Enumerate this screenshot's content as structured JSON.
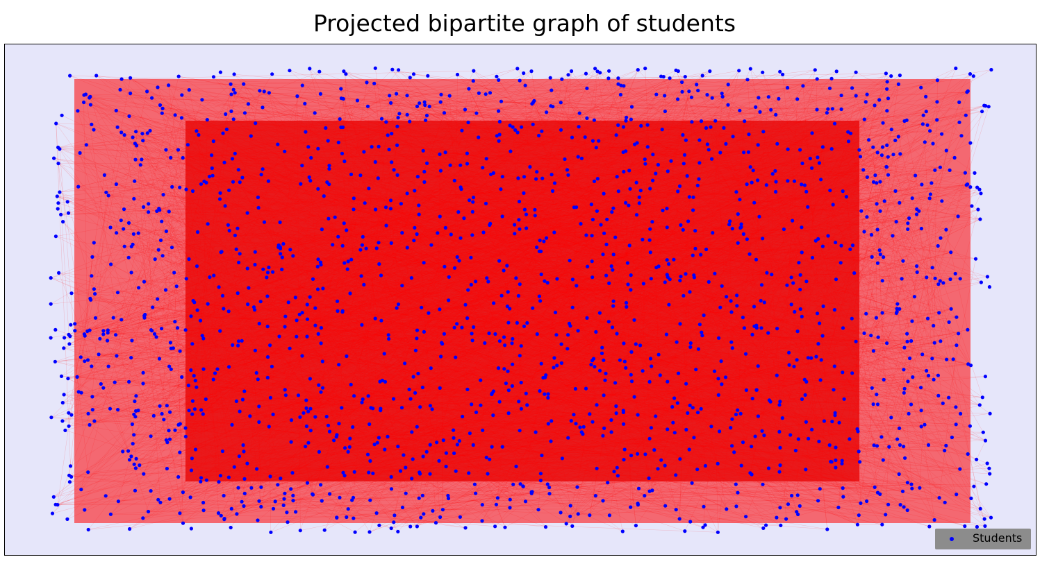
{
  "chart_data": {
    "type": "scatter",
    "title": "Projected bipartite graph of students",
    "xlabel": "",
    "ylabel": "",
    "grid": false,
    "axes_visible": false,
    "legend": {
      "placement": "bottom-right",
      "entries": [
        "Students"
      ]
    },
    "series": [
      {
        "name": "Students",
        "kind": "nodes",
        "color": "#0000ff",
        "node_count_estimate": 1900
      },
      {
        "kind": "edges",
        "color": "#ff0000",
        "style": "dense projected edges"
      }
    ],
    "colors": {
      "background": "#e6e6fa",
      "node": "#0000ff",
      "edge": "#ff0000",
      "legend_bg": "#8c8c8c"
    }
  }
}
